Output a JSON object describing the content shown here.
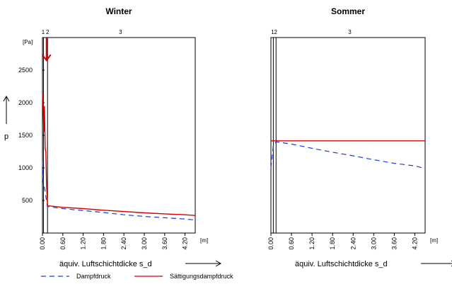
{
  "chart_data": [
    {
      "type": "line",
      "title": "Winter",
      "xlabel": "äquiv. Luftschichtdicke s_d",
      "x_unit": "[m]",
      "ylabel": "p",
      "y_unit": "[Pa]",
      "xlim": [
        0,
        4.5
      ],
      "ylim": [
        0,
        3000
      ],
      "x_ticks": [
        "0.00",
        "0.60",
        "1.20",
        "1.80",
        "2.40",
        "3.00",
        "3.60",
        "4.20"
      ],
      "y_ticks": [
        "500",
        "1000",
        "1500",
        "2000",
        "2500"
      ],
      "layers": [
        {
          "label": "1",
          "x": 0.02
        },
        {
          "label": "2",
          "x": 0.15
        },
        {
          "label": "3",
          "x": 2.3
        }
      ],
      "layer_boundaries": [
        0.0,
        0.03,
        0.15
      ],
      "series": [
        {
          "name": "Dampfdruck",
          "color": "#1a3fd6",
          "dash": true,
          "x": [
            0.0,
            0.02,
            0.04,
            0.08,
            0.1,
            0.15,
            0.6,
            1.2,
            1.8,
            2.4,
            3.0,
            3.6,
            4.2,
            4.5
          ],
          "y": [
            1100,
            780,
            750,
            640,
            560,
            405,
            375,
            345,
            315,
            280,
            255,
            235,
            215,
            200
          ]
        },
        {
          "name": "Sättigungsdampfdruck",
          "color": "#d40000",
          "dash": false,
          "x": [
            0.0,
            0.02,
            0.04,
            0.06,
            0.08,
            0.1,
            0.12,
            0.15,
            0.6,
            1.2,
            1.8,
            2.4,
            3.0,
            3.6,
            4.2,
            4.5
          ],
          "y": [
            2150,
            1900,
            1550,
            1950,
            1300,
            1250,
            750,
            420,
            395,
            375,
            350,
            330,
            310,
            295,
            280,
            270
          ]
        }
      ],
      "annotation": {
        "type": "arrow-down",
        "color": "#d40000",
        "x": 0.12,
        "y_from": 3000,
        "y_to": 2650
      }
    },
    {
      "type": "line",
      "title": "Sommer",
      "xlabel": "äquiv. Luftschichtdicke s_d",
      "x_unit": "[m]",
      "xlim": [
        0,
        4.5
      ],
      "ylim": [
        0,
        3000
      ],
      "x_ticks": [
        "0.00",
        "0.60",
        "1.20",
        "1.80",
        "2.40",
        "3.00",
        "3.60",
        "4.20"
      ],
      "layers": [
        {
          "label": "1",
          "x": 0.05
        },
        {
          "label": "2",
          "x": 0.14
        },
        {
          "label": "3",
          "x": 2.3
        }
      ],
      "layer_boundaries": [
        0.0,
        0.07,
        0.15
      ],
      "series": [
        {
          "name": "Dampfdruck",
          "color": "#1a3fd6",
          "dash": true,
          "x": [
            0.0,
            0.07,
            0.15,
            0.6,
            1.2,
            1.8,
            2.4,
            3.0,
            3.6,
            4.2,
            4.5
          ],
          "y": [
            1000,
            1340,
            1400,
            1365,
            1300,
            1240,
            1185,
            1125,
            1070,
            1030,
            990
          ]
        },
        {
          "name": "Sättigungsdampfdruck",
          "color": "#d40000",
          "dash": false,
          "x": [
            0.0,
            0.15,
            4.5
          ],
          "y": [
            1415,
            1415,
            1415
          ]
        }
      ]
    }
  ],
  "legend": [
    {
      "label": "Dampfdruck",
      "color": "#1a3fd6",
      "dash": true
    },
    {
      "label": "Sättigungsdampfdruck",
      "color": "#d40000",
      "dash": false
    }
  ]
}
